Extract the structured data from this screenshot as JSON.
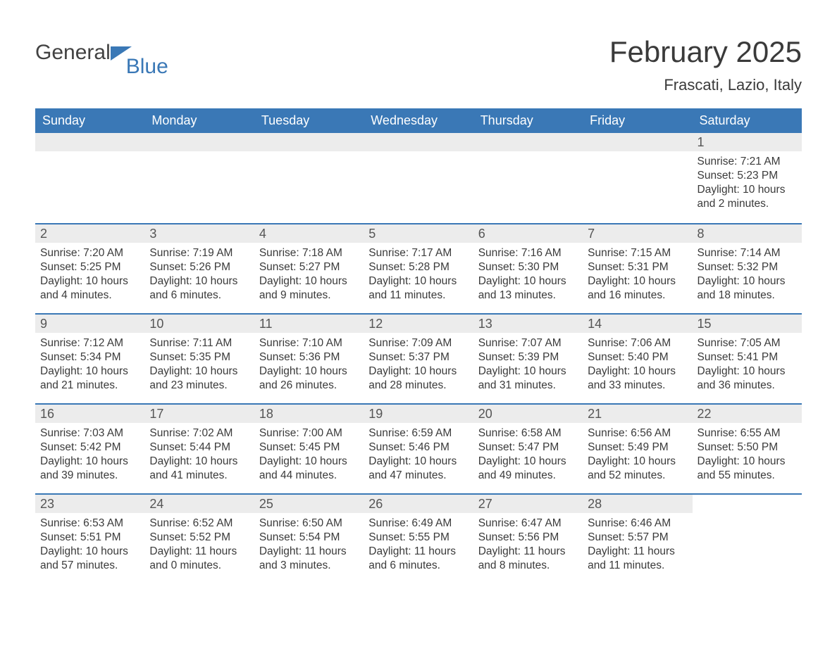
{
  "brand": {
    "text1": "General",
    "text2": "Blue",
    "icon_color": "#3a78b6"
  },
  "title": "February 2025",
  "location": "Frascati, Lazio, Italy",
  "colors": {
    "header_bg": "#3a78b6",
    "header_text": "#ffffff",
    "daynum_bg": "#ececec",
    "daynum_text": "#555555",
    "body_text": "#3a3a3a",
    "week_border": "#3a78b6",
    "page_bg": "#ffffff"
  },
  "typography": {
    "title_fontsize": 42,
    "location_fontsize": 22,
    "dow_fontsize": 18,
    "daynum_fontsize": 18,
    "body_fontsize": 15.5,
    "font_family": "Arial"
  },
  "dow": [
    "Sunday",
    "Monday",
    "Tuesday",
    "Wednesday",
    "Thursday",
    "Friday",
    "Saturday"
  ],
  "labels": {
    "sunrise": "Sunrise:",
    "sunset": "Sunset:",
    "daylight": "Daylight:"
  },
  "weeks": [
    [
      null,
      null,
      null,
      null,
      null,
      null,
      {
        "n": "1",
        "sunrise": "7:21 AM",
        "sunset": "5:23 PM",
        "daylight": "10 hours and 2 minutes."
      }
    ],
    [
      {
        "n": "2",
        "sunrise": "7:20 AM",
        "sunset": "5:25 PM",
        "daylight": "10 hours and 4 minutes."
      },
      {
        "n": "3",
        "sunrise": "7:19 AM",
        "sunset": "5:26 PM",
        "daylight": "10 hours and 6 minutes."
      },
      {
        "n": "4",
        "sunrise": "7:18 AM",
        "sunset": "5:27 PM",
        "daylight": "10 hours and 9 minutes."
      },
      {
        "n": "5",
        "sunrise": "7:17 AM",
        "sunset": "5:28 PM",
        "daylight": "10 hours and 11 minutes."
      },
      {
        "n": "6",
        "sunrise": "7:16 AM",
        "sunset": "5:30 PM",
        "daylight": "10 hours and 13 minutes."
      },
      {
        "n": "7",
        "sunrise": "7:15 AM",
        "sunset": "5:31 PM",
        "daylight": "10 hours and 16 minutes."
      },
      {
        "n": "8",
        "sunrise": "7:14 AM",
        "sunset": "5:32 PM",
        "daylight": "10 hours and 18 minutes."
      }
    ],
    [
      {
        "n": "9",
        "sunrise": "7:12 AM",
        "sunset": "5:34 PM",
        "daylight": "10 hours and 21 minutes."
      },
      {
        "n": "10",
        "sunrise": "7:11 AM",
        "sunset": "5:35 PM",
        "daylight": "10 hours and 23 minutes."
      },
      {
        "n": "11",
        "sunrise": "7:10 AM",
        "sunset": "5:36 PM",
        "daylight": "10 hours and 26 minutes."
      },
      {
        "n": "12",
        "sunrise": "7:09 AM",
        "sunset": "5:37 PM",
        "daylight": "10 hours and 28 minutes."
      },
      {
        "n": "13",
        "sunrise": "7:07 AM",
        "sunset": "5:39 PM",
        "daylight": "10 hours and 31 minutes."
      },
      {
        "n": "14",
        "sunrise": "7:06 AM",
        "sunset": "5:40 PM",
        "daylight": "10 hours and 33 minutes."
      },
      {
        "n": "15",
        "sunrise": "7:05 AM",
        "sunset": "5:41 PM",
        "daylight": "10 hours and 36 minutes."
      }
    ],
    [
      {
        "n": "16",
        "sunrise": "7:03 AM",
        "sunset": "5:42 PM",
        "daylight": "10 hours and 39 minutes."
      },
      {
        "n": "17",
        "sunrise": "7:02 AM",
        "sunset": "5:44 PM",
        "daylight": "10 hours and 41 minutes."
      },
      {
        "n": "18",
        "sunrise": "7:00 AM",
        "sunset": "5:45 PM",
        "daylight": "10 hours and 44 minutes."
      },
      {
        "n": "19",
        "sunrise": "6:59 AM",
        "sunset": "5:46 PM",
        "daylight": "10 hours and 47 minutes."
      },
      {
        "n": "20",
        "sunrise": "6:58 AM",
        "sunset": "5:47 PM",
        "daylight": "10 hours and 49 minutes."
      },
      {
        "n": "21",
        "sunrise": "6:56 AM",
        "sunset": "5:49 PM",
        "daylight": "10 hours and 52 minutes."
      },
      {
        "n": "22",
        "sunrise": "6:55 AM",
        "sunset": "5:50 PM",
        "daylight": "10 hours and 55 minutes."
      }
    ],
    [
      {
        "n": "23",
        "sunrise": "6:53 AM",
        "sunset": "5:51 PM",
        "daylight": "10 hours and 57 minutes."
      },
      {
        "n": "24",
        "sunrise": "6:52 AM",
        "sunset": "5:52 PM",
        "daylight": "11 hours and 0 minutes."
      },
      {
        "n": "25",
        "sunrise": "6:50 AM",
        "sunset": "5:54 PM",
        "daylight": "11 hours and 3 minutes."
      },
      {
        "n": "26",
        "sunrise": "6:49 AM",
        "sunset": "5:55 PM",
        "daylight": "11 hours and 6 minutes."
      },
      {
        "n": "27",
        "sunrise": "6:47 AM",
        "sunset": "5:56 PM",
        "daylight": "11 hours and 8 minutes."
      },
      {
        "n": "28",
        "sunrise": "6:46 AM",
        "sunset": "5:57 PM",
        "daylight": "11 hours and 11 minutes."
      },
      null
    ]
  ]
}
